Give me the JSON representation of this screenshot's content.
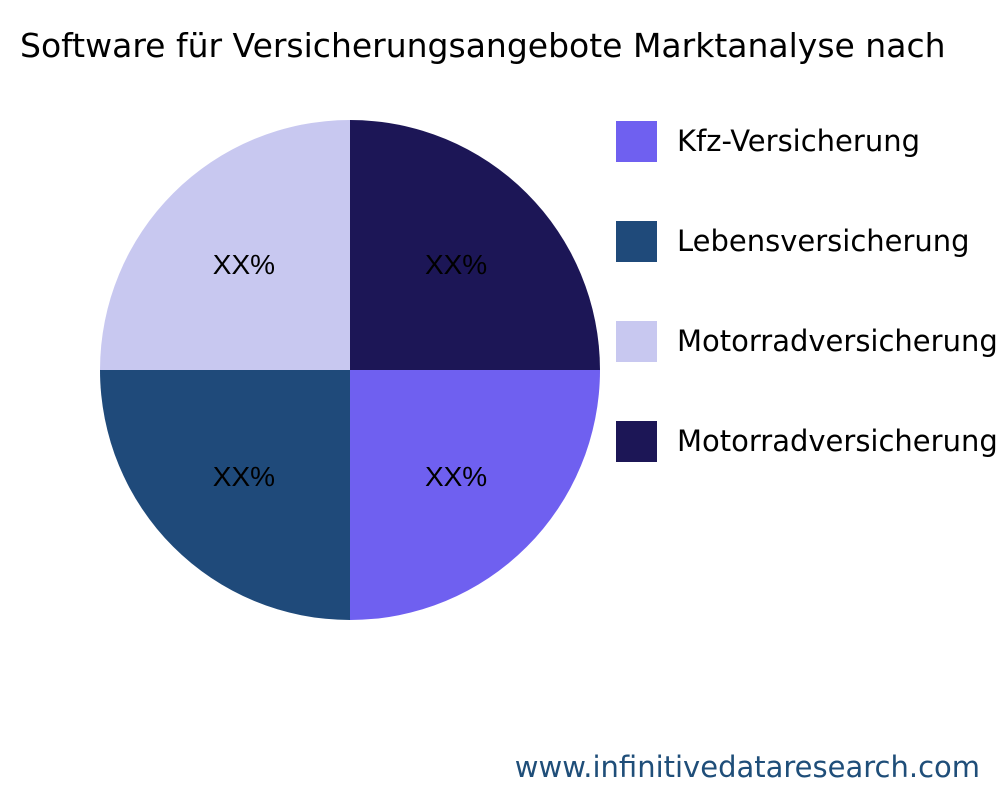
{
  "chart_data": {
    "type": "pie",
    "title": "Software für Versicherungsangebote Marktanalyse nach",
    "slices": [
      {
        "label": "Kfz-Versicherung",
        "value": 25,
        "text": "XX%",
        "color": "#6f60f0"
      },
      {
        "label": "Lebensversicherung",
        "value": 25,
        "text": "XX%",
        "color": "#1f4a7a"
      },
      {
        "label": "Motorradversicherung",
        "value": 25,
        "text": "XX%",
        "color": "#c8c8f0"
      },
      {
        "label": "Motorradversicherung",
        "value": 25,
        "text": "XX%",
        "color": "#1c1656"
      }
    ],
    "legend_position": "right"
  },
  "watermark": "www.infinitivedataresearch.com"
}
